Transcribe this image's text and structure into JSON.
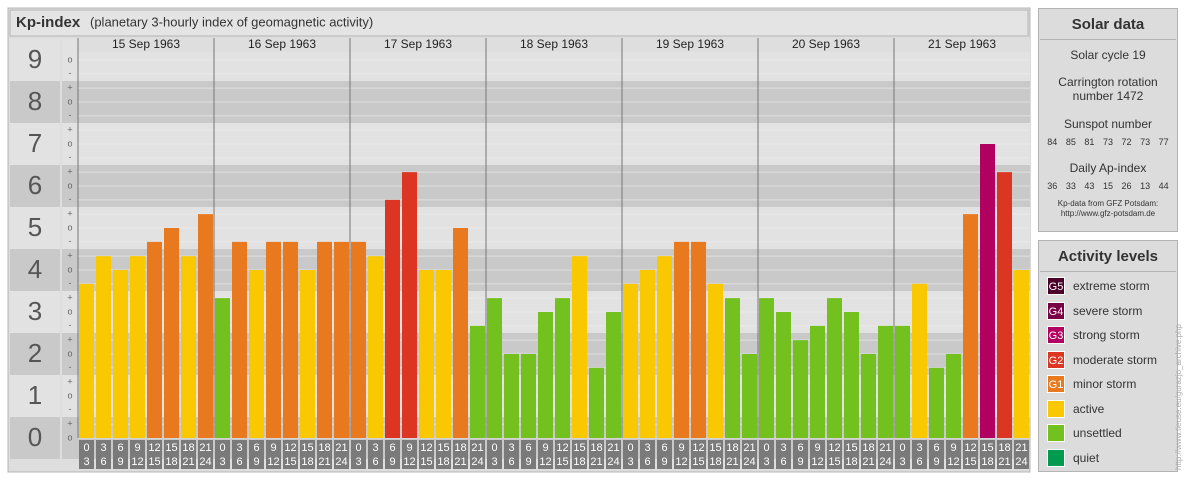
{
  "chart_data": {
    "type": "bar",
    "title": "Kp-index",
    "subtitle": "(planetary 3-hourly index of geomagnetic activity)",
    "ylim": [
      0,
      9.5
    ],
    "yticks": [
      0,
      1,
      2,
      3,
      4,
      5,
      6,
      7,
      8,
      9
    ],
    "minor_yticks": [
      {
        "value": 0,
        "label": "o"
      },
      {
        "value": 0.33,
        "label": "+"
      },
      {
        "value": 0.67,
        "label": "-"
      },
      {
        "value": 1,
        "label": "o"
      },
      {
        "value": 1.33,
        "label": "+"
      },
      {
        "value": 1.67,
        "label": "-"
      },
      {
        "value": 2,
        "label": "o"
      },
      {
        "value": 2.33,
        "label": "+"
      },
      {
        "value": 2.67,
        "label": "-"
      },
      {
        "value": 3,
        "label": "o"
      },
      {
        "value": 3.33,
        "label": "+"
      },
      {
        "value": 3.67,
        "label": "-"
      },
      {
        "value": 4,
        "label": "o"
      },
      {
        "value": 4.33,
        "label": "+"
      },
      {
        "value": 4.67,
        "label": "-"
      },
      {
        "value": 5,
        "label": "o"
      },
      {
        "value": 5.33,
        "label": "+"
      },
      {
        "value": 5.67,
        "label": "-"
      },
      {
        "value": 6,
        "label": "o"
      },
      {
        "value": 6.33,
        "label": "+"
      },
      {
        "value": 6.67,
        "label": "-"
      },
      {
        "value": 7,
        "label": "o"
      },
      {
        "value": 7.33,
        "label": "+"
      },
      {
        "value": 7.67,
        "label": "-"
      },
      {
        "value": 8,
        "label": "o"
      },
      {
        "value": 8.33,
        "label": "+"
      },
      {
        "value": 8.67,
        "label": "-"
      },
      {
        "value": 9,
        "label": "o"
      }
    ],
    "time_slots": [
      [
        "0",
        "3"
      ],
      [
        "3",
        "6"
      ],
      [
        "6",
        "9"
      ],
      [
        "9",
        "12"
      ],
      [
        "12",
        "15"
      ],
      [
        "15",
        "18"
      ],
      [
        "18",
        "21"
      ],
      [
        "21",
        "24"
      ]
    ],
    "series": [
      {
        "name": "15 Sep 1963",
        "values": [
          3.67,
          4.33,
          4,
          4.33,
          4.67,
          5,
          4.33,
          5.33
        ],
        "colors": [
          "#f9c800",
          "#f9c800",
          "#f9c800",
          "#f9c800",
          "#e8791f",
          "#e8791f",
          "#f9c800",
          "#e8791f"
        ]
      },
      {
        "name": "16 Sep 1963",
        "values": [
          3.33,
          4.67,
          4,
          4.67,
          4.67,
          4,
          4.67,
          4.67
        ],
        "colors": [
          "#72c11e",
          "#e8791f",
          "#f9c800",
          "#e8791f",
          "#e8791f",
          "#f9c800",
          "#e8791f",
          "#e8791f"
        ]
      },
      {
        "name": "17 Sep 1963",
        "values": [
          4.67,
          4.33,
          5.67,
          6.33,
          4,
          4,
          5,
          2.67
        ],
        "colors": [
          "#e8791f",
          "#f9c800",
          "#dc3522",
          "#dc3522",
          "#f9c800",
          "#f9c800",
          "#e8791f",
          "#72c11e"
        ]
      },
      {
        "name": "18 Sep 1963",
        "values": [
          3.33,
          2,
          2,
          3,
          3.33,
          4.33,
          1.67,
          3
        ],
        "colors": [
          "#72c11e",
          "#72c11e",
          "#72c11e",
          "#72c11e",
          "#72c11e",
          "#f9c800",
          "#72c11e",
          "#72c11e"
        ]
      },
      {
        "name": "19 Sep 1963",
        "values": [
          3.67,
          4,
          4.33,
          4.67,
          4.67,
          3.67,
          3.33,
          2
        ],
        "colors": [
          "#f9c800",
          "#f9c800",
          "#f9c800",
          "#e8791f",
          "#e8791f",
          "#f9c800",
          "#72c11e",
          "#72c11e"
        ]
      },
      {
        "name": "20 Sep 1963",
        "values": [
          3.33,
          3,
          2.33,
          2.67,
          3.33,
          3,
          2,
          2.67
        ],
        "colors": [
          "#72c11e",
          "#72c11e",
          "#72c11e",
          "#72c11e",
          "#72c11e",
          "#72c11e",
          "#72c11e",
          "#72c11e"
        ]
      },
      {
        "name": "21 Sep 1963",
        "values": [
          2.67,
          3.67,
          1.67,
          2,
          5.33,
          7,
          6.33,
          4
        ],
        "colors": [
          "#72c11e",
          "#f9c800",
          "#72c11e",
          "#72c11e",
          "#e8791f",
          "#b1005f",
          "#dc3522",
          "#f9c800"
        ]
      }
    ]
  },
  "solar_data": {
    "title": "Solar data",
    "solar_cycle": "Solar cycle 19",
    "carrington": "Carrington rotation number 1472",
    "sunspot_label": "Sunspot number",
    "sunspot": [
      84,
      85,
      81,
      73,
      72,
      73,
      77
    ],
    "ap_label": "Daily Ap-index",
    "ap": [
      36,
      33,
      43,
      15,
      26,
      13,
      44
    ],
    "source": "Kp-data from GFZ Potsdam:",
    "source_url": "http://www.gfz-potsdam.de"
  },
  "activity_levels": {
    "title": "Activity levels",
    "levels": [
      {
        "code": "G5",
        "name": "extreme storm",
        "color": "#4a0028"
      },
      {
        "code": "G4",
        "name": "severe storm",
        "color": "#7a0045"
      },
      {
        "code": "G3",
        "name": "strong storm",
        "color": "#b1005f"
      },
      {
        "code": "G2",
        "name": "moderate storm",
        "color": "#dc3522"
      },
      {
        "code": "G1",
        "name": "minor storm",
        "color": "#e8791f"
      },
      {
        "name": "active",
        "color": "#f9c800"
      },
      {
        "name": "unsettled",
        "color": "#72c11e"
      },
      {
        "name": "quiet",
        "color": "#009b4e"
      }
    ]
  },
  "watermark": "http://www.tieuse.eu/gurazjo_archive.php"
}
